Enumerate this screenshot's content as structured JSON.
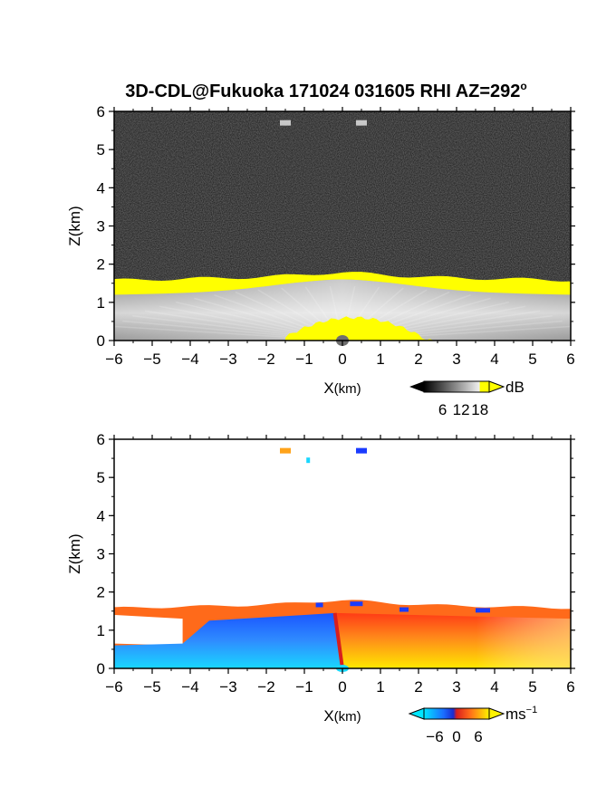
{
  "chart_data": [
    {
      "type": "heatmap",
      "title": "3D-CDL@Fukuoka 171024 031605 RHI AZ=292",
      "title_suffix": "o",
      "quantity": "reflectivity",
      "xlabel_main": "X",
      "xlabel_unit": "(km)",
      "ylabel": "Z(km)",
      "xlim": [
        -6,
        6
      ],
      "ylim": [
        0,
        6
      ],
      "x_ticks": [
        -6,
        -5,
        -4,
        -3,
        -2,
        -1,
        0,
        1,
        2,
        3,
        4,
        5,
        6
      ],
      "y_ticks": [
        0,
        1,
        2,
        3,
        4,
        5,
        6
      ],
      "colorbar": {
        "unit": "dB",
        "ticks": [
          6,
          12,
          18
        ],
        "range": [
          0,
          21
        ],
        "extend": "both"
      },
      "layers": {
        "cloud_top_km": 1.7,
        "inner_echo_top_km": 1.3,
        "surface_echo_top_km": 0.6,
        "high_echoes_km": [
          {
            "x": -1.5,
            "z": 5.7
          },
          {
            "x": 0.5,
            "z": 5.7
          }
        ]
      },
      "colors": {
        "background": "#141414",
        "high": "#ffff00",
        "mid": "#bdbdbd"
      }
    },
    {
      "type": "heatmap",
      "quantity": "doppler_velocity",
      "xlabel_main": "X",
      "xlabel_unit": "(km)",
      "ylabel": "Z(km)",
      "xlim": [
        -6,
        6
      ],
      "ylim": [
        0,
        6
      ],
      "x_ticks": [
        -6,
        -5,
        -4,
        -3,
        -2,
        -1,
        0,
        1,
        2,
        3,
        4,
        5,
        6
      ],
      "y_ticks": [
        0,
        1,
        2,
        3,
        4,
        5,
        6
      ],
      "colorbar": {
        "unit_main": "ms",
        "unit_exp": "−1",
        "ticks": [
          "−6",
          "0",
          "6"
        ],
        "range": [
          -9,
          9
        ],
        "extend": "both"
      },
      "layers": {
        "echo_top_km": 1.7,
        "sign_change_x_km": 0,
        "high_echoes_km": [
          {
            "x": -1.5,
            "z": 5.7,
            "v": 5
          },
          {
            "x": 0.5,
            "z": 5.7,
            "v": -6
          },
          {
            "x": -0.9,
            "z": 5.45,
            "v": -8
          }
        ]
      },
      "colors": {
        "negative": "#1560ff",
        "positive": "#ff6a1a",
        "near_zero": "#d81e1e"
      }
    }
  ]
}
